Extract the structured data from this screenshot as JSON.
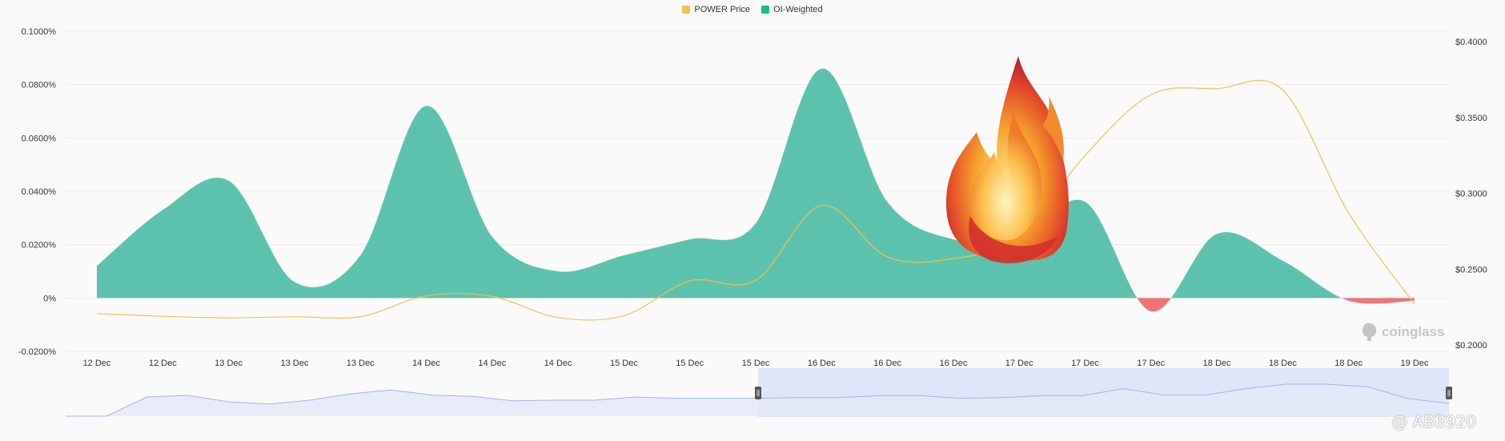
{
  "legend": {
    "price_label": "POWER Price",
    "oi_label": "OI-Weighted"
  },
  "brand": {
    "watermark": "coinglass"
  },
  "user_watermark": "@ ABB920",
  "colors": {
    "price": "#f2c04d",
    "oi_positive": "#5dc2ad",
    "oi_negative": "#ef7476",
    "legend_oi": "#1abc8c",
    "navigator_line": "#9db3ea",
    "navigator_fill": "#e6ebf8",
    "navigator_sel": "#dae2f8"
  },
  "chart_data": {
    "type": "area",
    "x_ticks": [
      "12 Dec",
      "12 Dec",
      "13 Dec",
      "13 Dec",
      "13 Dec",
      "14 Dec",
      "14 Dec",
      "14 Dec",
      "15 Dec",
      "15 Dec",
      "15 Dec",
      "16 Dec",
      "16 Dec",
      "16 Dec",
      "17 Dec",
      "17 Dec",
      "17 Dec",
      "18 Dec",
      "18 Dec",
      "18 Dec",
      "19 Dec"
    ],
    "y_left": {
      "min": -0.02,
      "max": 0.1,
      "ticks": [
        "0.1000%",
        "0.0800%",
        "0.0600%",
        "0.0400%",
        "0.0200%",
        "0%",
        "-0.0200%"
      ]
    },
    "y_right": {
      "min": 0.2,
      "max": 0.4,
      "ticks": [
        "$0.4000",
        "$0.3500",
        "$0.3000",
        "$0.2500",
        "$0.2000"
      ]
    },
    "series": [
      {
        "name": "OI-Weighted",
        "axis": "left",
        "values": [
          0.012,
          0.033,
          0.044,
          0.006,
          0.016,
          0.072,
          0.023,
          0.01,
          0.016,
          0.022,
          0.028,
          0.086,
          0.036,
          0.022,
          0.022,
          0.036,
          -0.005,
          0.024,
          0.014,
          -0.001,
          -0.001
        ]
      },
      {
        "name": "POWER Price",
        "axis": "right",
        "values": [
          0.2207,
          0.2189,
          0.2179,
          0.2186,
          0.2187,
          0.2324,
          0.232,
          0.2181,
          0.2193,
          0.2422,
          0.2426,
          0.292,
          0.258,
          0.257,
          0.271,
          0.325,
          0.365,
          0.369,
          0.368,
          0.287,
          0.227
        ]
      }
    ],
    "navigator": {
      "values": [
        0.0,
        0.0,
        0.6,
        0.65,
        0.45,
        0.38,
        0.5,
        0.7,
        0.82,
        0.66,
        0.62,
        0.48,
        0.5,
        0.5,
        0.6,
        0.56,
        0.56,
        0.56,
        0.58,
        0.58,
        0.64,
        0.64,
        0.56,
        0.58,
        0.64,
        0.64,
        0.86,
        0.66,
        0.66,
        0.86,
        1.0,
        1.0,
        0.92,
        0.55,
        0.4
      ]
    }
  }
}
